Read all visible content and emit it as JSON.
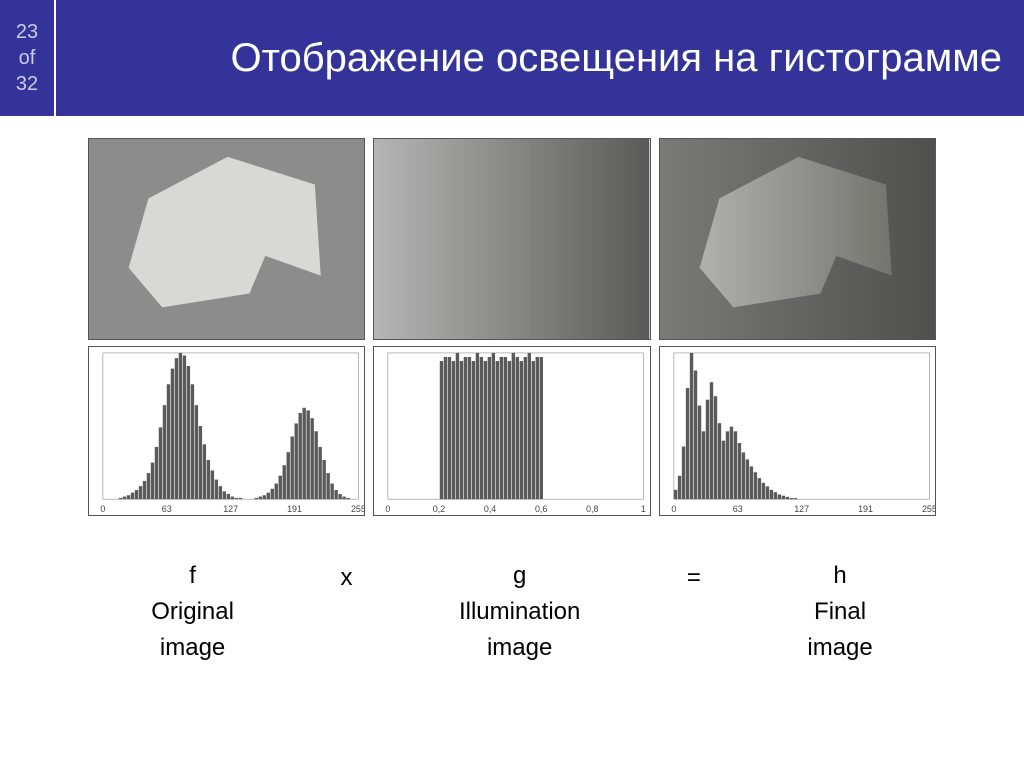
{
  "header": {
    "page_current": "23",
    "page_of": "of",
    "page_total": "32",
    "title": "Отображение освещения на гистограмме"
  },
  "images": {
    "original": {
      "bg": "#8c8c8c",
      "shape_fill": "#d8d8d6"
    },
    "illumination": {
      "grad_start": "#b5b5b5",
      "grad_end": "#5a5a58"
    },
    "final": {
      "bg_left": "#7a7a78",
      "bg_right": "#4f4f4d",
      "shape_left": "#b0b0ae",
      "shape_right": "#74746f"
    }
  },
  "histograms": {
    "bar_color": "#5a5a5a",
    "h1": {
      "ticks": [
        "0",
        "63",
        "127",
        "191",
        "255"
      ],
      "bars": [
        0,
        0,
        0,
        0,
        1,
        2,
        3,
        5,
        7,
        10,
        14,
        20,
        28,
        40,
        55,
        72,
        88,
        100,
        108,
        112,
        110,
        102,
        88,
        72,
        56,
        42,
        30,
        22,
        15,
        10,
        6,
        4,
        2,
        1,
        1,
        0,
        0,
        0,
        1,
        2,
        3,
        5,
        8,
        12,
        18,
        26,
        36,
        48,
        58,
        66,
        70,
        68,
        62,
        52,
        40,
        30,
        20,
        12,
        7,
        4,
        2,
        1,
        0,
        0
      ]
    },
    "h2": {
      "ticks": [
        "0",
        "0,2",
        "0,4",
        "0,6",
        "0,8",
        "1"
      ],
      "bars": [
        0,
        0,
        0,
        0,
        0,
        0,
        0,
        0,
        0,
        0,
        0,
        0,
        0,
        68,
        70,
        70,
        68,
        72,
        68,
        70,
        70,
        68,
        72,
        70,
        68,
        70,
        72,
        68,
        70,
        70,
        68,
        72,
        70,
        68,
        70,
        72,
        68,
        70,
        70,
        0,
        0,
        0,
        0,
        0,
        0,
        0,
        0,
        0,
        0,
        0,
        0,
        0,
        0,
        0,
        0,
        0,
        0,
        0,
        0,
        0,
        0,
        0,
        0,
        0
      ]
    },
    "h3": {
      "ticks": [
        "0",
        "63",
        "127",
        "191",
        "255"
      ],
      "bars": [
        8,
        20,
        45,
        95,
        125,
        110,
        80,
        58,
        85,
        100,
        88,
        65,
        50,
        58,
        62,
        58,
        48,
        40,
        34,
        28,
        23,
        18,
        14,
        11,
        8,
        6,
        4,
        3,
        2,
        1,
        1,
        0,
        0,
        0,
        0,
        0,
        0,
        0,
        0,
        0,
        0,
        0,
        0,
        0,
        0,
        0,
        0,
        0,
        0,
        0,
        0,
        0,
        0,
        0,
        0,
        0,
        0,
        0,
        0,
        0,
        0,
        0,
        0,
        0
      ]
    }
  },
  "equation": {
    "f": "f",
    "x": "x",
    "g": "g",
    "eq": "=",
    "h": "h",
    "label_f": "Original image",
    "label_g": "Illumination image",
    "label_h": "Final image"
  }
}
